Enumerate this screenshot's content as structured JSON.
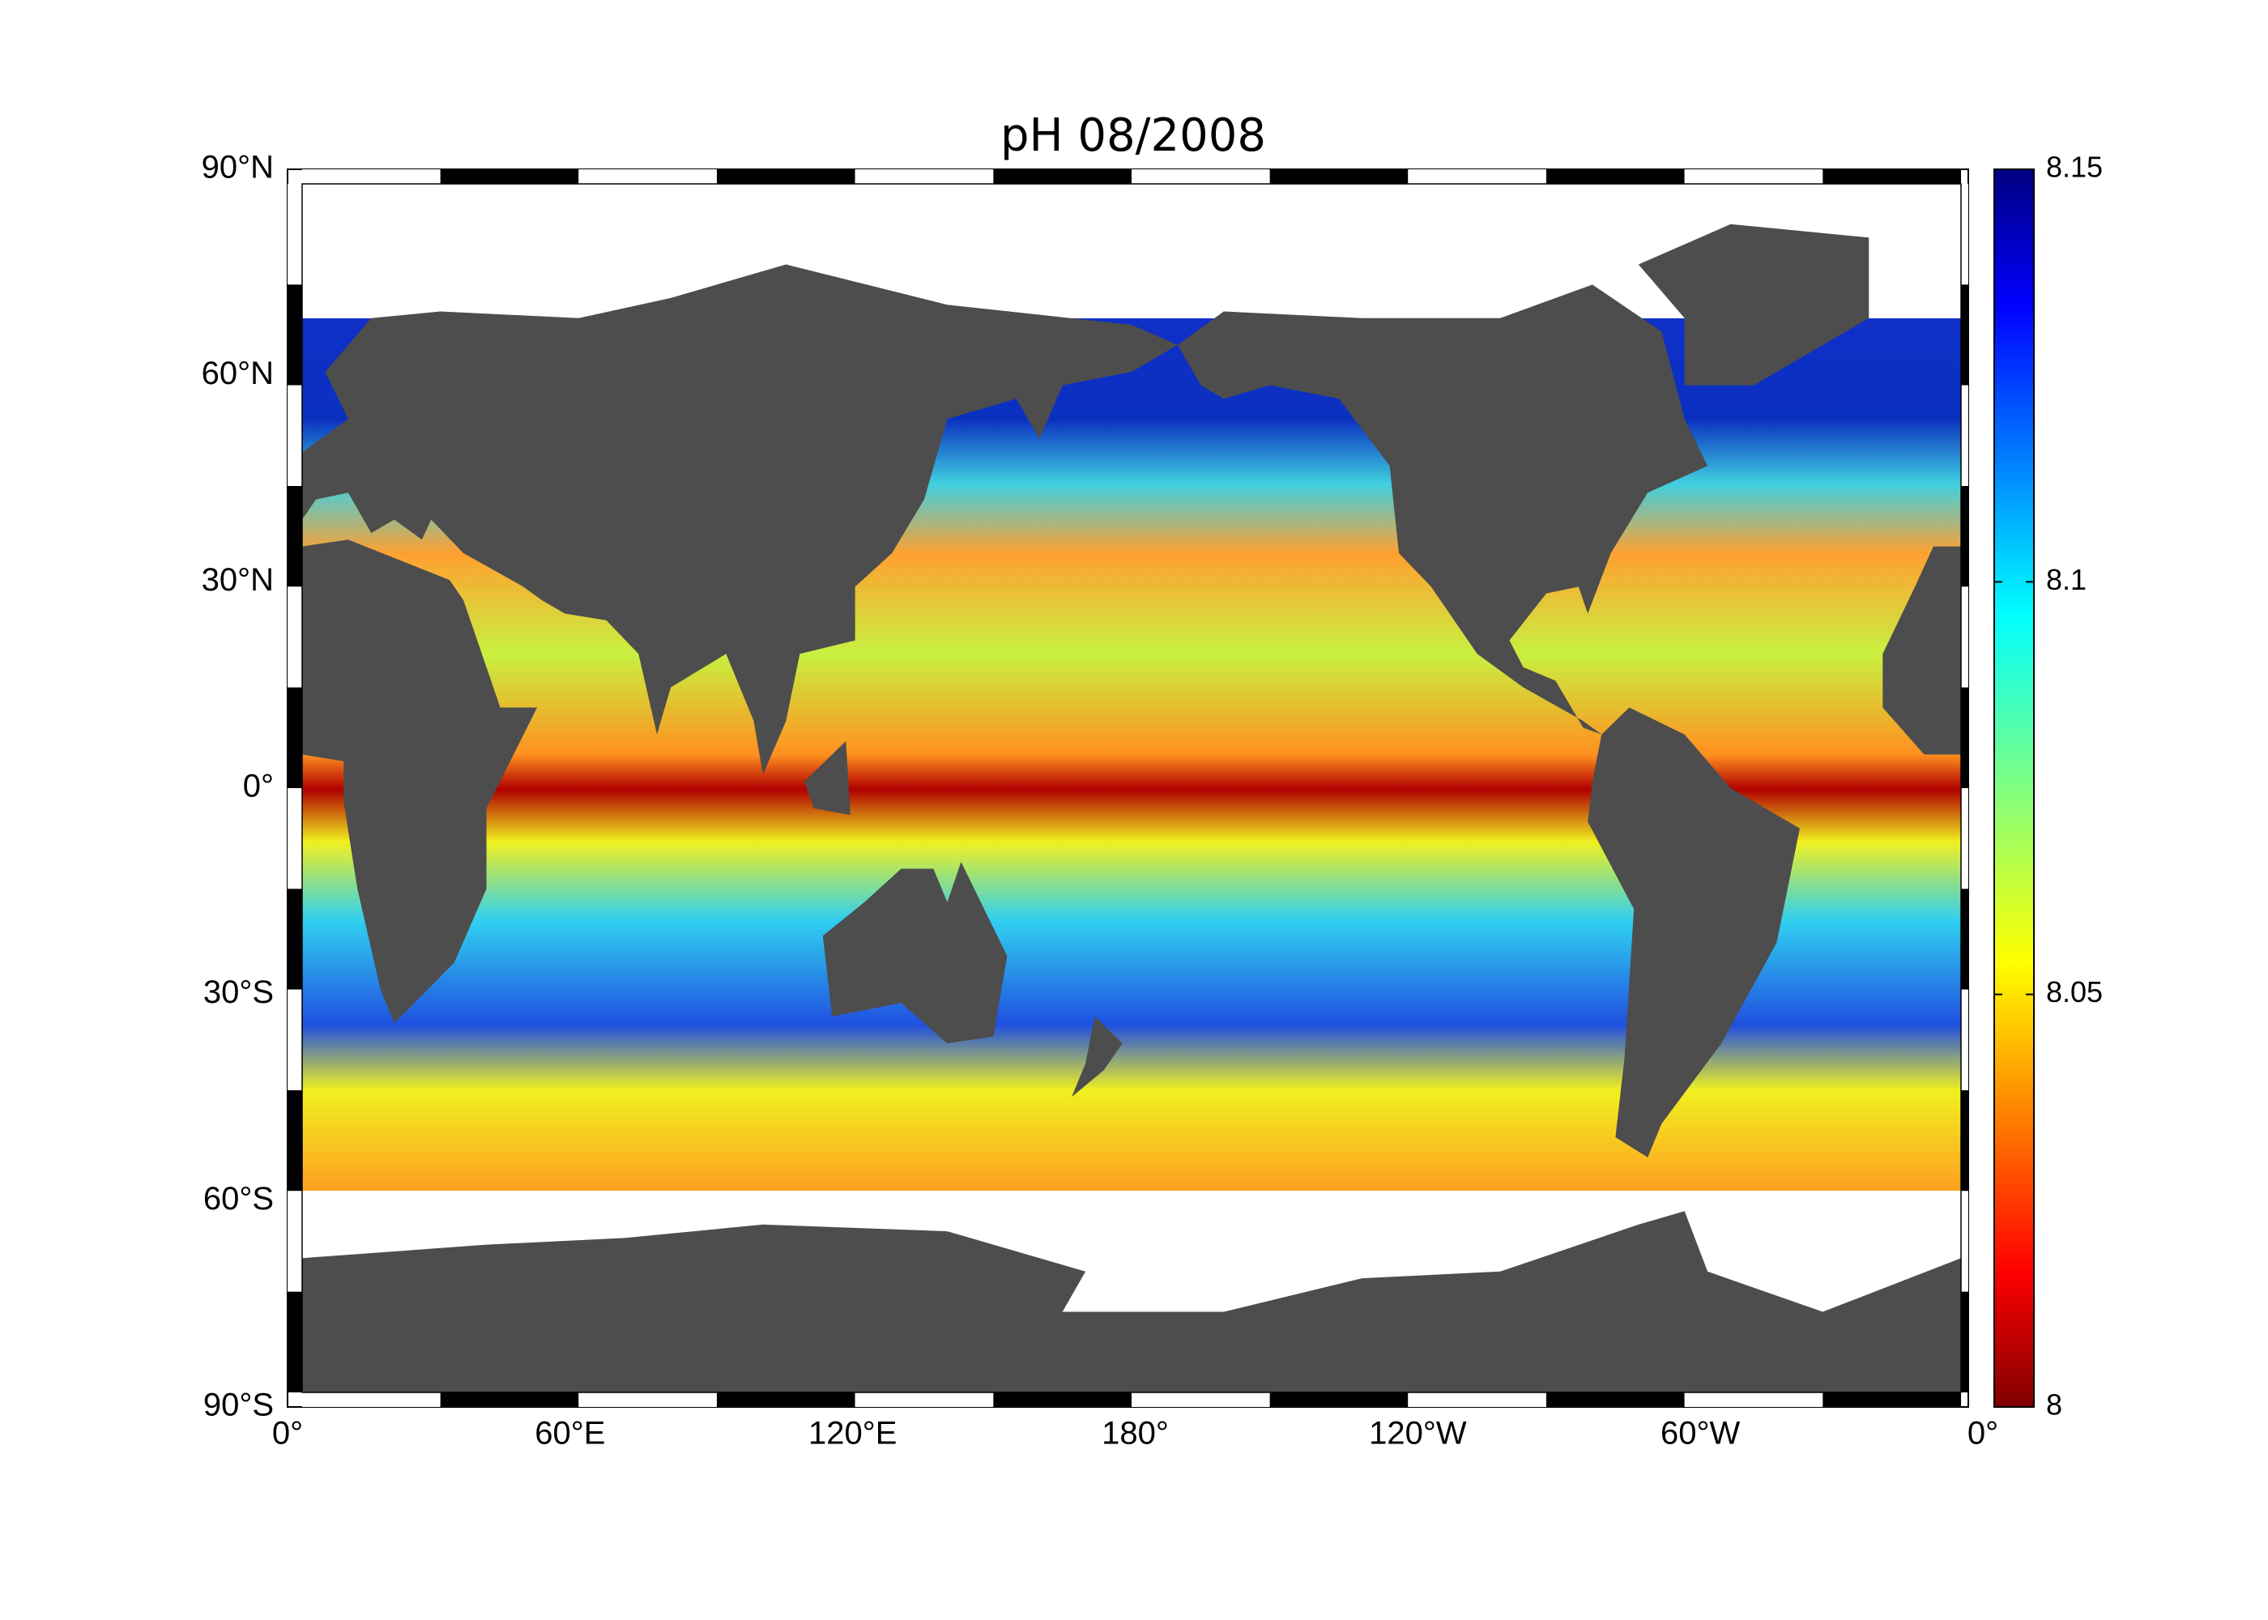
{
  "map": {
    "title": "pH  08/2008",
    "lat_ticks": [
      "90°N",
      "60°N",
      "30°N",
      "0°",
      "30°S",
      "60°S",
      "90°S"
    ],
    "lon_ticks": [
      "0°",
      "60°E",
      "120°E",
      "180°",
      "120°W",
      "60°W",
      "0°"
    ],
    "colorbar": {
      "lim": [
        8,
        8.15
      ],
      "ticks": [
        8,
        8.05,
        8.1,
        8.15
      ]
    }
  }
}
